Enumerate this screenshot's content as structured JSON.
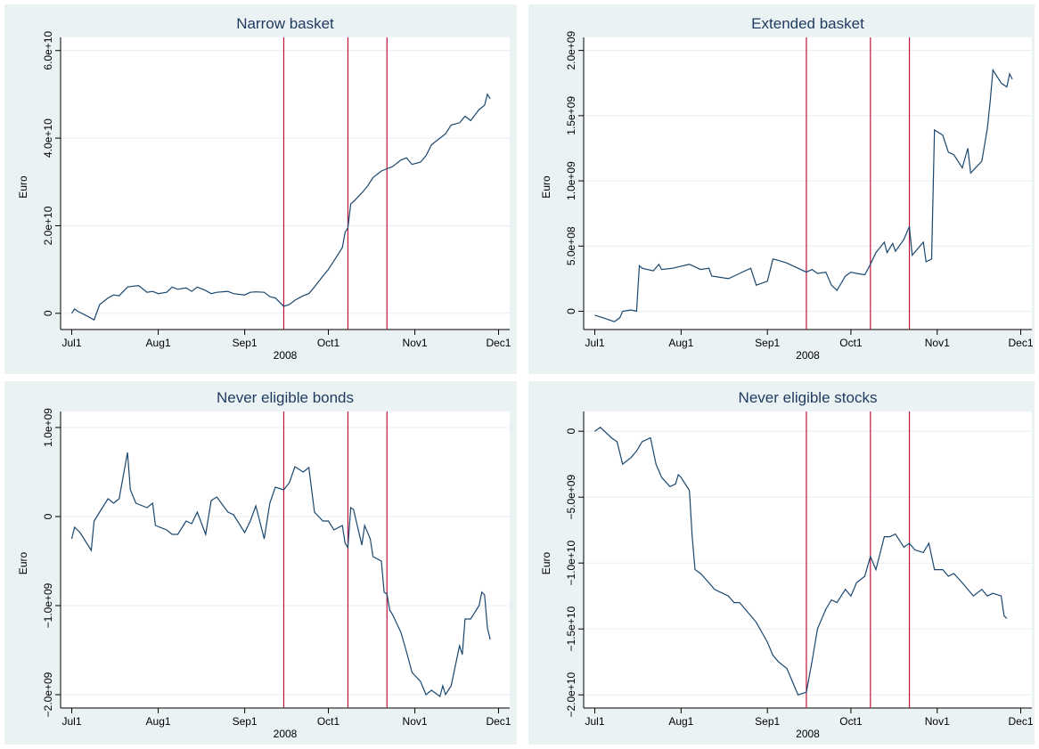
{
  "chart_data": [
    {
      "type": "line",
      "title": "Narrow basket",
      "x_label": "2008",
      "y_label": "Euro",
      "color": "#1a476f",
      "grid": true,
      "xlim": [
        "2008-06-27",
        "2008-12-05"
      ],
      "xticks": [
        {
          "value": "2008-07-01",
          "label": "Jul1"
        },
        {
          "value": "2008-08-01",
          "label": "Aug1"
        },
        {
          "value": "2008-09-01",
          "label": "Sep1"
        },
        {
          "value": "2008-10-01",
          "label": "Oct1"
        },
        {
          "value": "2008-11-01",
          "label": "Nov1"
        },
        {
          "value": "2008-12-01",
          "label": "Dec1"
        }
      ],
      "ylim": [
        -3700000000.0,
        63000000000.0
      ],
      "yticks": [
        0,
        {
          "value": 20000000000.0,
          "label": "2.0e+10"
        },
        {
          "value": 40000000000.0,
          "label": "4.0e+10"
        },
        {
          "value": 60000000000.0,
          "label": "6.0e+10"
        }
      ],
      "vlines": [
        "2008-09-15",
        "2008-10-08",
        "2008-10-22"
      ],
      "vline_color": "#c0143c",
      "x": [
        "2008-07-01",
        "2008-07-02",
        "2008-07-03",
        "2008-07-07",
        "2008-07-09",
        "2008-07-11",
        "2008-07-14",
        "2008-07-16",
        "2008-07-18",
        "2008-07-21",
        "2008-07-23",
        "2008-07-25",
        "2008-07-28",
        "2008-07-30",
        "2008-08-01",
        "2008-08-04",
        "2008-08-06",
        "2008-08-08",
        "2008-08-11",
        "2008-08-13",
        "2008-08-15",
        "2008-08-18",
        "2008-08-20",
        "2008-08-22",
        "2008-08-26",
        "2008-08-28",
        "2008-09-01",
        "2008-09-03",
        "2008-09-05",
        "2008-09-08",
        "2008-09-10",
        "2008-09-12",
        "2008-09-15",
        "2008-09-17",
        "2008-09-19",
        "2008-09-22",
        "2008-09-24",
        "2008-09-26",
        "2008-09-29",
        "2008-10-01",
        "2008-10-03",
        "2008-10-06",
        "2008-10-07",
        "2008-10-08",
        "2008-10-09",
        "2008-10-10",
        "2008-10-13",
        "2008-10-15",
        "2008-10-17",
        "2008-10-20",
        "2008-10-22",
        "2008-10-24",
        "2008-10-27",
        "2008-10-29",
        "2008-10-31",
        "2008-11-03",
        "2008-11-05",
        "2008-11-07",
        "2008-11-10",
        "2008-11-12",
        "2008-11-14",
        "2008-11-17",
        "2008-11-19",
        "2008-11-21",
        "2008-11-24",
        "2008-11-26",
        "2008-11-27",
        "2008-11-28"
      ],
      "values": [
        0,
        1000000000.0,
        500000000.0,
        -800000000.0,
        -1500000000.0,
        2000000000.0,
        3500000000.0,
        4200000000.0,
        4000000000.0,
        6000000000.0,
        6200000000.0,
        6300000000.0,
        4800000000.0,
        5000000000.0,
        4500000000.0,
        4800000000.0,
        6000000000.0,
        5500000000.0,
        5800000000.0,
        5000000000.0,
        6000000000.0,
        5200000000.0,
        4500000000.0,
        4800000000.0,
        5000000000.0,
        4500000000.0,
        4200000000.0,
        4800000000.0,
        4900000000.0,
        4800000000.0,
        3800000000.0,
        3500000000.0,
        1600000000.0,
        2000000000.0,
        3000000000.0,
        4000000000.0,
        4500000000.0,
        6000000000.0,
        8500000000.0,
        10000000000.0,
        12000000000.0,
        15000000000.0,
        18500000000.0,
        19500000000.0,
        25000000000.0,
        25500000000.0,
        27500000000.0,
        29000000000.0,
        31000000000.0,
        32500000000.0,
        33000000000.0,
        33500000000.0,
        35000000000.0,
        35500000000.0,
        34000000000.0,
        34500000000.0,
        36000000000.0,
        38500000000.0,
        40000000000.0,
        41000000000.0,
        43000000000.0,
        43500000000.0,
        45000000000.0,
        44000000000.0,
        46500000000.0,
        47500000000.0,
        50000000000.0,
        49000000000.0
      ]
    },
    {
      "type": "line",
      "title": "Extended basket",
      "x_label": "2008",
      "y_label": "Euro",
      "color": "#1a476f",
      "grid": true,
      "xlim": [
        "2008-06-27",
        "2008-12-05"
      ],
      "xticks": [
        {
          "value": "2008-07-01",
          "label": "Jul1"
        },
        {
          "value": "2008-08-01",
          "label": "Aug1"
        },
        {
          "value": "2008-09-01",
          "label": "Sep1"
        },
        {
          "value": "2008-10-01",
          "label": "Oct1"
        },
        {
          "value": "2008-11-01",
          "label": "Nov1"
        },
        {
          "value": "2008-12-01",
          "label": "Dec1"
        }
      ],
      "ylim": [
        -140000000.0,
        2100000000.0
      ],
      "yticks": [
        0,
        {
          "value": 500000000.0,
          "label": "5.0e+08"
        },
        {
          "value": 1000000000.0,
          "label": "1.0e+09"
        },
        {
          "value": 1500000000.0,
          "label": "1.5e+09"
        },
        {
          "value": 2000000000.0,
          "label": "2.0e+09"
        }
      ],
      "vlines": [
        "2008-09-15",
        "2008-10-08",
        "2008-10-22"
      ],
      "vline_color": "#c0143c",
      "x": [
        "2008-07-01",
        "2008-07-04",
        "2008-07-08",
        "2008-07-10",
        "2008-07-11",
        "2008-07-14",
        "2008-07-16",
        "2008-07-17",
        "2008-07-18",
        "2008-07-22",
        "2008-07-24",
        "2008-07-25",
        "2008-07-29",
        "2008-07-31",
        "2008-08-04",
        "2008-08-06",
        "2008-08-08",
        "2008-08-11",
        "2008-08-12",
        "2008-08-15",
        "2008-08-18",
        "2008-08-20",
        "2008-08-22",
        "2008-08-26",
        "2008-08-28",
        "2008-09-01",
        "2008-09-03",
        "2008-09-05",
        "2008-09-08",
        "2008-09-10",
        "2008-09-12",
        "2008-09-15",
        "2008-09-17",
        "2008-09-19",
        "2008-09-22",
        "2008-09-24",
        "2008-09-26",
        "2008-09-29",
        "2008-10-01",
        "2008-10-03",
        "2008-10-06",
        "2008-10-08",
        "2008-10-10",
        "2008-10-13",
        "2008-10-14",
        "2008-10-16",
        "2008-10-17",
        "2008-10-20",
        "2008-10-22",
        "2008-10-23",
        "2008-10-27",
        "2008-10-28",
        "2008-10-30",
        "2008-10-31",
        "2008-11-03",
        "2008-11-05",
        "2008-11-07",
        "2008-11-10",
        "2008-11-12",
        "2008-11-13",
        "2008-11-17",
        "2008-11-19",
        "2008-11-20",
        "2008-11-21",
        "2008-11-24",
        "2008-11-26",
        "2008-11-27",
        "2008-11-28"
      ],
      "values": [
        -30000000.0,
        -50000000.0,
        -80000000.0,
        -50000000.0,
        0,
        10000000.0,
        0,
        350000000.0,
        330000000.0,
        310000000.0,
        360000000.0,
        320000000.0,
        330000000.0,
        340000000.0,
        360000000.0,
        340000000.0,
        320000000.0,
        330000000.0,
        270000000.0,
        260000000.0,
        250000000.0,
        270000000.0,
        290000000.0,
        330000000.0,
        200000000.0,
        230000000.0,
        400000000.0,
        390000000.0,
        370000000.0,
        350000000.0,
        330000000.0,
        300000000.0,
        320000000.0,
        290000000.0,
        300000000.0,
        200000000.0,
        160000000.0,
        270000000.0,
        300000000.0,
        290000000.0,
        280000000.0,
        360000000.0,
        450000000.0,
        530000000.0,
        450000000.0,
        520000000.0,
        460000000.0,
        550000000.0,
        650000000.0,
        430000000.0,
        530000000.0,
        380000000.0,
        400000000.0,
        1390000000.0,
        1350000000.0,
        1220000000.0,
        1200000000.0,
        1100000000.0,
        1250000000.0,
        1060000000.0,
        1150000000.0,
        1400000000.0,
        1600000000.0,
        1850000000.0,
        1750000000.0,
        1720000000.0,
        1820000000.0,
        1780000000.0
      ]
    },
    {
      "type": "line",
      "title": "Never eligible bonds",
      "x_label": "2008",
      "y_label": "Euro",
      "color": "#1a476f",
      "grid": true,
      "xlim": [
        "2008-06-27",
        "2008-12-05"
      ],
      "xticks": [
        {
          "value": "2008-07-01",
          "label": "Jul1"
        },
        {
          "value": "2008-08-01",
          "label": "Aug1"
        },
        {
          "value": "2008-09-01",
          "label": "Sep1"
        },
        {
          "value": "2008-10-01",
          "label": "Oct1"
        },
        {
          "value": "2008-11-01",
          "label": "Nov1"
        },
        {
          "value": "2008-12-01",
          "label": "Dec1"
        }
      ],
      "ylim": [
        -2150000000.0,
        1180000000.0
      ],
      "yticks": [
        {
          "value": -2000000000.0,
          "label": "−2.0e+09"
        },
        {
          "value": -1000000000.0,
          "label": "−1.0e+09"
        },
        0,
        {
          "value": 1000000000.0,
          "label": "1.0e+09"
        }
      ],
      "vlines": [
        "2008-09-15",
        "2008-10-08",
        "2008-10-22"
      ],
      "vline_color": "#c0143c",
      "x": [
        "2008-07-01",
        "2008-07-02",
        "2008-07-04",
        "2008-07-08",
        "2008-07-09",
        "2008-07-11",
        "2008-07-14",
        "2008-07-16",
        "2008-07-18",
        "2008-07-21",
        "2008-07-22",
        "2008-07-24",
        "2008-07-28",
        "2008-07-30",
        "2008-07-31",
        "2008-08-04",
        "2008-08-06",
        "2008-08-08",
        "2008-08-11",
        "2008-08-13",
        "2008-08-15",
        "2008-08-18",
        "2008-08-20",
        "2008-08-22",
        "2008-08-26",
        "2008-08-28",
        "2008-09-01",
        "2008-09-03",
        "2008-09-05",
        "2008-09-08",
        "2008-09-10",
        "2008-09-12",
        "2008-09-15",
        "2008-09-17",
        "2008-09-19",
        "2008-09-22",
        "2008-09-24",
        "2008-09-26",
        "2008-09-29",
        "2008-10-01",
        "2008-10-03",
        "2008-10-06",
        "2008-10-07",
        "2008-10-08",
        "2008-10-09",
        "2008-10-10",
        "2008-10-13",
        "2008-10-14",
        "2008-10-16",
        "2008-10-17",
        "2008-10-20",
        "2008-10-21",
        "2008-10-22",
        "2008-10-23",
        "2008-10-24",
        "2008-10-27",
        "2008-10-29",
        "2008-10-31",
        "2008-11-03",
        "2008-11-05",
        "2008-11-07",
        "2008-11-10",
        "2008-11-11",
        "2008-11-12",
        "2008-11-14",
        "2008-11-17",
        "2008-11-18",
        "2008-11-19",
        "2008-11-21",
        "2008-11-24",
        "2008-11-25",
        "2008-11-26",
        "2008-11-27",
        "2008-11-28"
      ],
      "values": [
        -250000000.0,
        -120000000.0,
        -180000000.0,
        -380000000.0,
        -50000000.0,
        50000000.0,
        200000000.0,
        150000000.0,
        200000000.0,
        720000000.0,
        300000000.0,
        150000000.0,
        100000000.0,
        150000000.0,
        -100000000.0,
        -150000000.0,
        -200000000.0,
        -200000000.0,
        -50000000.0,
        -80000000.0,
        50000000.0,
        -200000000.0,
        180000000.0,
        220000000.0,
        50000000.0,
        20000000.0,
        -180000000.0,
        -50000000.0,
        120000000.0,
        -250000000.0,
        150000000.0,
        330000000.0,
        300000000.0,
        380000000.0,
        560000000.0,
        500000000.0,
        550000000.0,
        50000000.0,
        -50000000.0,
        -50000000.0,
        -150000000.0,
        -100000000.0,
        -300000000.0,
        -350000000.0,
        100000000.0,
        80000000.0,
        -320000000.0,
        -100000000.0,
        -250000000.0,
        -450000000.0,
        -500000000.0,
        -850000000.0,
        -870000000.0,
        -1050000000.0,
        -1100000000.0,
        -1300000000.0,
        -1520000000.0,
        -1750000000.0,
        -1850000000.0,
        -2000000000.0,
        -1950000000.0,
        -2020000000.0,
        -1900000000.0,
        -2000000000.0,
        -1900000000.0,
        -1450000000.0,
        -1550000000.0,
        -1150000000.0,
        -1150000000.0,
        -1000000000.0,
        -850000000.0,
        -880000000.0,
        -1250000000.0,
        -1380000000.0
      ]
    },
    {
      "type": "line",
      "title": "Never eligible stocks",
      "x_label": "2008",
      "y_label": "Euro",
      "color": "#1a476f",
      "grid": true,
      "xlim": [
        "2008-06-27",
        "2008-12-05"
      ],
      "xticks": [
        {
          "value": "2008-07-01",
          "label": "Jul1"
        },
        {
          "value": "2008-08-01",
          "label": "Aug1"
        },
        {
          "value": "2008-09-01",
          "label": "Sep1"
        },
        {
          "value": "2008-10-01",
          "label": "Oct1"
        },
        {
          "value": "2008-11-01",
          "label": "Nov1"
        },
        {
          "value": "2008-12-01",
          "label": "Dec1"
        }
      ],
      "ylim": [
        -21000000000.0,
        1500000000.0
      ],
      "yticks": [
        {
          "value": -20000000000.0,
          "label": "−2.0e+10"
        },
        {
          "value": -15000000000.0,
          "label": "−1.5e+10"
        },
        {
          "value": -10000000000.0,
          "label": "−1.0e+10"
        },
        {
          "value": -5000000000.0,
          "label": "−5.0e+09"
        },
        0
      ],
      "vlines": [
        "2008-09-15",
        "2008-10-08",
        "2008-10-22"
      ],
      "vline_color": "#c0143c",
      "x": [
        "2008-07-01",
        "2008-07-03",
        "2008-07-07",
        "2008-07-09",
        "2008-07-11",
        "2008-07-14",
        "2008-07-16",
        "2008-07-18",
        "2008-07-21",
        "2008-07-23",
        "2008-07-25",
        "2008-07-28",
        "2008-07-30",
        "2008-07-31",
        "2008-08-01",
        "2008-08-04",
        "2008-08-05",
        "2008-08-06",
        "2008-08-08",
        "2008-08-11",
        "2008-08-13",
        "2008-08-15",
        "2008-08-18",
        "2008-08-20",
        "2008-08-22",
        "2008-08-26",
        "2008-08-28",
        "2008-09-01",
        "2008-09-03",
        "2008-09-05",
        "2008-09-08",
        "2008-09-10",
        "2008-09-12",
        "2008-09-15",
        "2008-09-17",
        "2008-09-19",
        "2008-09-22",
        "2008-09-24",
        "2008-09-26",
        "2008-09-29",
        "2008-10-01",
        "2008-10-03",
        "2008-10-06",
        "2008-10-08",
        "2008-10-10",
        "2008-10-13",
        "2008-10-15",
        "2008-10-17",
        "2008-10-20",
        "2008-10-22",
        "2008-10-24",
        "2008-10-27",
        "2008-10-29",
        "2008-10-31",
        "2008-11-03",
        "2008-11-05",
        "2008-11-07",
        "2008-11-10",
        "2008-11-12",
        "2008-11-14",
        "2008-11-17",
        "2008-11-19",
        "2008-11-21",
        "2008-11-24",
        "2008-11-25",
        "2008-11-26"
      ],
      "values": [
        0,
        300000000.0,
        -500000000.0,
        -800000000.0,
        -2500000000.0,
        -2000000000.0,
        -1500000000.0,
        -800000000.0,
        -500000000.0,
        -2500000000.0,
        -3500000000.0,
        -4200000000.0,
        -4000000000.0,
        -3300000000.0,
        -3500000000.0,
        -4500000000.0,
        -8000000000.0,
        -10500000000.0,
        -10800000000.0,
        -11500000000.0,
        -12000000000.0,
        -12200000000.0,
        -12500000000.0,
        -13000000000.0,
        -13000000000.0,
        -14000000000.0,
        -14500000000.0,
        -16000000000.0,
        -17000000000.0,
        -17500000000.0,
        -18000000000.0,
        -19000000000.0,
        -20000000000.0,
        -19800000000.0,
        -17500000000.0,
        -15000000000.0,
        -13500000000.0,
        -12800000000.0,
        -13000000000.0,
        -12000000000.0,
        -12500000000.0,
        -11500000000.0,
        -11000000000.0,
        -9500000000.0,
        -10500000000.0,
        -8000000000.0,
        -8000000000.0,
        -7800000000.0,
        -8800000000.0,
        -8500000000.0,
        -9000000000.0,
        -9200000000.0,
        -8500000000.0,
        -10500000000.0,
        -10500000000.0,
        -11000000000.0,
        -10800000000.0,
        -11500000000.0,
        -12000000000.0,
        -12500000000.0,
        -12000000000.0,
        -12500000000.0,
        -12300000000.0,
        -12500000000.0,
        -14000000000.0,
        -14200000000.0
      ]
    }
  ]
}
